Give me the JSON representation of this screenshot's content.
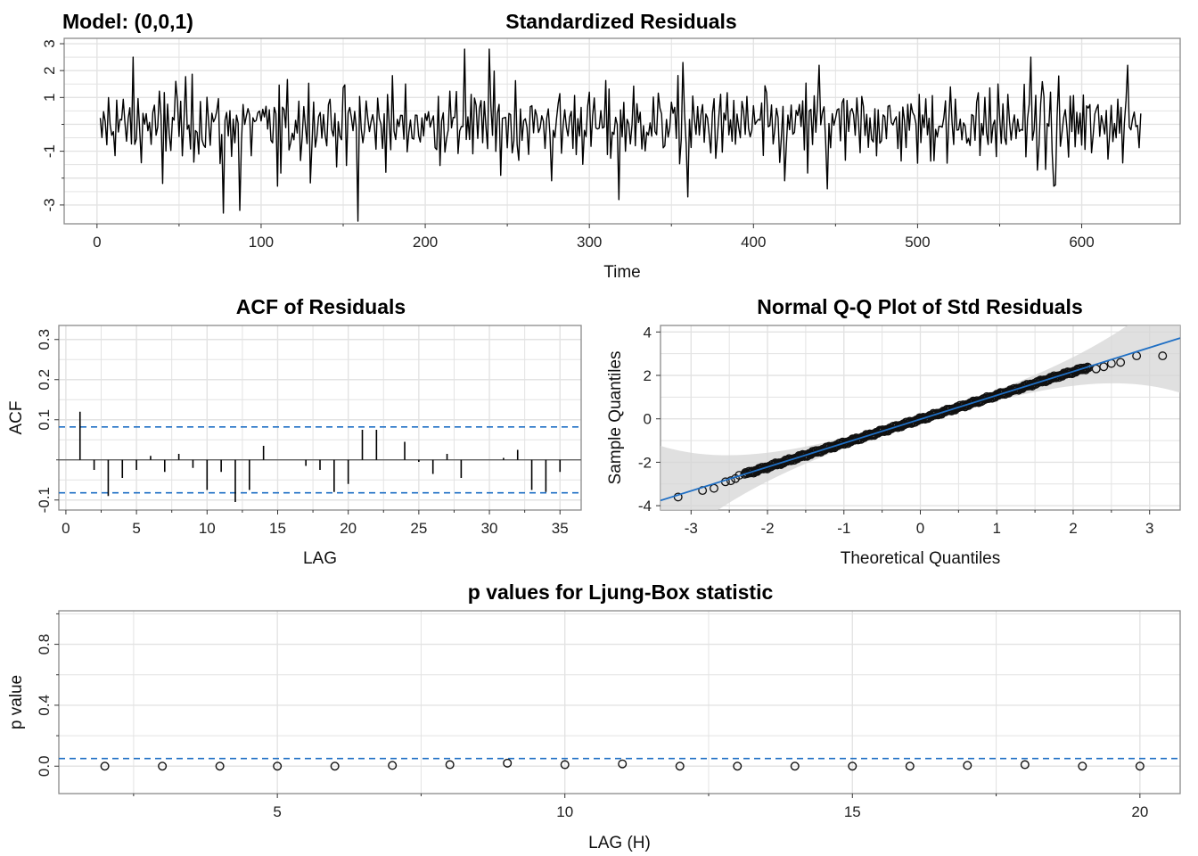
{
  "model_label": "Model: (0,0,1)",
  "colors": {
    "grid": "#e3e3e3",
    "frame": "#8a8a8a",
    "line": "#000000",
    "ref": "#1f6fc4",
    "band": "#d6d6d6"
  },
  "chart_data": [
    {
      "id": "residuals",
      "type": "line",
      "title": "Standardized Residuals",
      "xlabel": "Time",
      "ylabel": "",
      "xlim": [
        -20,
        660
      ],
      "ylim": [
        -3.7,
        3.2
      ],
      "xticks": [
        0,
        100,
        200,
        300,
        400,
        500,
        600
      ],
      "yticks": [
        3,
        2,
        1,
        -1,
        -3
      ],
      "ytick_labels": [
        "3",
        "2",
        "1",
        "-1",
        "-3"
      ],
      "n": 635,
      "x_start": 2,
      "spikes": [
        {
          "t": 22,
          "y": 2.5
        },
        {
          "t": 40,
          "y": -2.2
        },
        {
          "t": 48,
          "y": 1.6
        },
        {
          "t": 77,
          "y": -3.3
        },
        {
          "t": 87,
          "y": -3.2
        },
        {
          "t": 110,
          "y": -2.3
        },
        {
          "t": 159,
          "y": -3.6
        },
        {
          "t": 224,
          "y": 2.8
        },
        {
          "t": 239,
          "y": 2.8
        },
        {
          "t": 277,
          "y": -2.1
        },
        {
          "t": 318,
          "y": -2.8
        },
        {
          "t": 357,
          "y": 2.3
        },
        {
          "t": 360,
          "y": -2.7
        },
        {
          "t": 419,
          "y": -2.1
        },
        {
          "t": 440,
          "y": 2.2
        },
        {
          "t": 445,
          "y": -2.4
        },
        {
          "t": 569,
          "y": 2.5
        },
        {
          "t": 583,
          "y": -2.3
        },
        {
          "t": 628,
          "y": 2.2
        }
      ]
    },
    {
      "id": "acf",
      "type": "bar",
      "title": "ACF of Residuals",
      "xlabel": "LAG",
      "ylabel": "ACF",
      "xlim": [
        -0.5,
        36.5
      ],
      "ylim": [
        -0.125,
        0.335
      ],
      "xticks": [
        0,
        5,
        10,
        15,
        20,
        25,
        30,
        35
      ],
      "yticks": [
        0.3,
        0.2,
        0.1,
        -0.1
      ],
      "ytick_labels": [
        "0.3",
        "0.2",
        "0.1",
        "-0.1"
      ],
      "lags": [
        1,
        2,
        3,
        4,
        5,
        6,
        7,
        8,
        9,
        10,
        11,
        12,
        13,
        14,
        15,
        16,
        17,
        18,
        19,
        20,
        21,
        22,
        23,
        24,
        25,
        26,
        27,
        28,
        29,
        30,
        31,
        32,
        33,
        34,
        35
      ],
      "values": [
        0.12,
        -0.025,
        -0.09,
        -0.045,
        -0.025,
        0.01,
        -0.03,
        0.015,
        -0.02,
        -0.075,
        -0.03,
        -0.105,
        -0.075,
        0.035,
        0.0,
        0.0,
        -0.015,
        -0.025,
        -0.08,
        -0.06,
        0.075,
        0.075,
        0.0,
        0.045,
        -0.005,
        -0.035,
        0.015,
        -0.045,
        0.0,
        0.0,
        0.005,
        0.025,
        -0.075,
        -0.08,
        -0.03
      ],
      "conf_limit": 0.082
    },
    {
      "id": "qq",
      "type": "scatter",
      "title": "Normal Q-Q Plot of Std Residuals",
      "xlabel": "Theoretical Quantiles",
      "ylabel": "Sample Quantiles",
      "xlim": [
        -3.4,
        3.4
      ],
      "ylim": [
        -4.2,
        4.3
      ],
      "xticks": [
        -3,
        -2,
        -1,
        0,
        1,
        2,
        3
      ],
      "yticks": [
        4,
        2,
        0,
        -2,
        -4
      ],
      "ytick_labels": [
        "4",
        "2",
        "0",
        "-2",
        "-4"
      ],
      "line": {
        "intercept": -0.02,
        "slope": 1.1
      },
      "outliers": [
        [
          -3.17,
          -3.6
        ],
        [
          -2.85,
          -3.3
        ],
        [
          -2.7,
          -3.2
        ],
        [
          -2.55,
          -2.9
        ],
        [
          -2.48,
          -2.85
        ],
        [
          -2.42,
          -2.75
        ],
        [
          -2.37,
          -2.6
        ],
        [
          2.3,
          2.3
        ],
        [
          2.4,
          2.4
        ],
        [
          2.5,
          2.55
        ],
        [
          2.62,
          2.6
        ],
        [
          2.83,
          2.9
        ],
        [
          3.17,
          2.9
        ]
      ]
    },
    {
      "id": "ljung",
      "type": "scatter",
      "title": "p values for Ljung-Box statistic",
      "xlabel": "LAG (H)",
      "ylabel": "p value",
      "xlim": [
        1.2,
        20.7
      ],
      "ylim": [
        -0.18,
        1.02
      ],
      "xticks": [
        5,
        10,
        15,
        20
      ],
      "yticks": [
        0.0,
        0.4,
        0.8
      ],
      "ytick_labels": [
        "0.0",
        "0.4",
        "0.8"
      ],
      "lags": [
        2,
        3,
        4,
        5,
        6,
        7,
        8,
        9,
        10,
        11,
        12,
        13,
        14,
        15,
        16,
        17,
        18,
        19,
        20
      ],
      "pvalues": [
        0.0,
        0.0,
        0.0,
        0.0,
        0.0,
        0.005,
        0.01,
        0.02,
        0.01,
        0.015,
        0.0,
        0.0,
        0.0,
        0.0,
        0.0,
        0.005,
        0.01,
        0.0,
        0.0
      ],
      "significance": 0.05
    }
  ]
}
